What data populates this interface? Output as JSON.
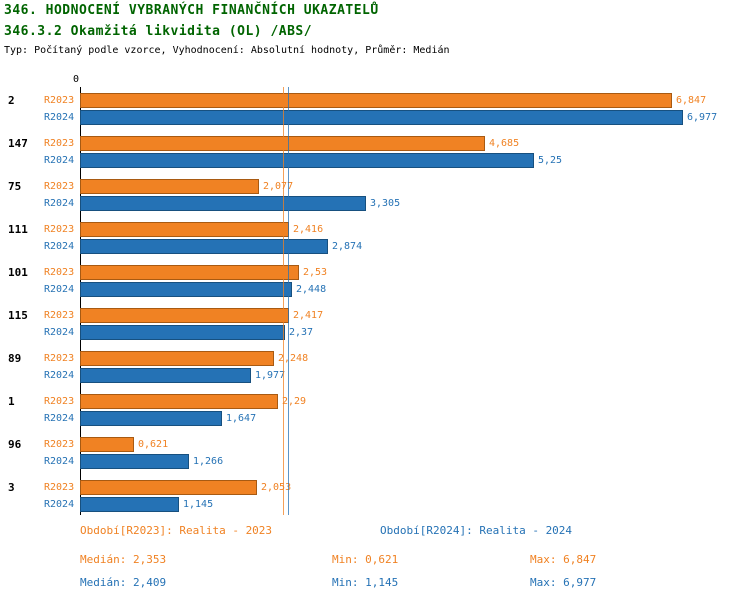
{
  "colors": {
    "title": "#006400",
    "series_2023": "#F08223",
    "series_2023_border": "#A85A12",
    "series_2024": "#2572B5",
    "series_2024_border": "#17507F",
    "axis": "#000000"
  },
  "header": {
    "title": "346. HODNOCENÍ VYBRANÝCH FINANČNÍCH UKAZATELŮ",
    "subtitle": "346.3.2 Okamžitá likvidita (OL) /ABS/",
    "meta": "Typ: Počítaný podle vzorce, Vyhodnocení: Absolutní hodnoty, Průměr: Medián"
  },
  "chart_data": {
    "type": "bar",
    "orientation": "horizontal",
    "title": "346.3.2 Okamžitá likvidita (OL) /ABS/",
    "xlabel": "",
    "ylabel": "",
    "xlim": [
      0,
      7.5
    ],
    "x_tick_zero": "0",
    "grid": false,
    "legend_position": "bottom",
    "categories": [
      "2",
      "147",
      "75",
      "111",
      "101",
      "115",
      "89",
      "1",
      "96",
      "3"
    ],
    "series": [
      {
        "name": "R2023",
        "color": "#F08223",
        "border": "#A85A12",
        "values": [
          6.847,
          4.685,
          2.077,
          2.416,
          2.53,
          2.417,
          2.248,
          2.29,
          0.621,
          2.053
        ],
        "labels": [
          "6,847",
          "4,685",
          "2,077",
          "2,416",
          "2,53",
          "2,417",
          "2,248",
          "2,29",
          "0,621",
          "2,053"
        ],
        "median": 2.353
      },
      {
        "name": "R2024",
        "color": "#2572B5",
        "border": "#17507F",
        "values": [
          6.977,
          5.25,
          3.305,
          2.874,
          2.448,
          2.37,
          1.977,
          1.647,
          1.266,
          1.145
        ],
        "labels": [
          "6,977",
          "5,25",
          "3,305",
          "2,874",
          "2,448",
          "2,37",
          "1,977",
          "1,647",
          "1,266",
          "1,145"
        ],
        "median": 2.409
      }
    ]
  },
  "legend": {
    "series1": "Období[R2023]: Realita - 2023",
    "series2": "Období[R2024]: Realita - 2024",
    "stats1": {
      "median": "Medián: 2,353",
      "min": "Min: 0,621",
      "max": "Max: 6,847"
    },
    "stats2": {
      "median": "Medián: 2,409",
      "min": "Min: 1,145",
      "max": "Max: 6,977"
    }
  }
}
